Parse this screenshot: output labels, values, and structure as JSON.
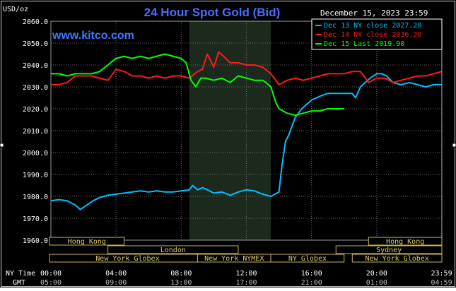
{
  "chart_data": {
    "type": "line",
    "title": "24 Hour Spot Gold (Bid)",
    "brand": "www.kitco.com",
    "timestamp": "December 15, 2023 23:59",
    "ylabel": "USD/oz",
    "ylim": [
      1960,
      2060
    ],
    "xlim": [
      0,
      24
    ],
    "yticks": [
      "1960.0",
      "1970.0",
      "1980.0",
      "1990.0",
      "2000.0",
      "2010.0",
      "2020.0",
      "2030.0",
      "2040.0",
      "2050.0",
      "2060.0"
    ],
    "ytick_values": [
      1960,
      1970,
      1980,
      1990,
      2000,
      2010,
      2020,
      2030,
      2040,
      2050,
      2060
    ],
    "time_rows": [
      {
        "label": "NY Time",
        "ticks": [
          "00:00",
          "04:00",
          "08:00",
          "12:00",
          "16:00",
          "20:00",
          "23:59"
        ]
      },
      {
        "label": "GMT",
        "ticks": [
          "05:00",
          "09:00",
          "13:00",
          "17:00",
          "21:00",
          "01:00",
          "04:59"
        ]
      }
    ],
    "xtick_hours": [
      0,
      4,
      8,
      12,
      16,
      20,
      23.98
    ],
    "shaded_hours": [
      8.5,
      13.5
    ],
    "sessions": [
      {
        "name": "Hong Kong",
        "start": -1,
        "end": 4.5,
        "row": 0
      },
      {
        "name": "Hong Kong",
        "start": 19.5,
        "end": 25,
        "row": 0
      },
      {
        "name": "London",
        "start": 3.5,
        "end": 11.5,
        "row": 1
      },
      {
        "name": "Sydney",
        "start": 17.5,
        "end": 25,
        "row": 1
      },
      {
        "name": "New York Globex",
        "start": -1,
        "end": 9.5,
        "row": 2
      },
      {
        "name": "New York NYMEX",
        "start": 9,
        "end": 13.5,
        "row": 2
      },
      {
        "name": "NY Globex",
        "start": 13.5,
        "end": 18,
        "row": 2
      },
      {
        "name": "New York Globex",
        "start": 18.5,
        "end": 25,
        "row": 2
      }
    ],
    "series": [
      {
        "name": "Dec 13 NY close 2027.20",
        "color": "#00bfff",
        "x": [
          0,
          0.5,
          1,
          1.5,
          1.8,
          2.2,
          2.6,
          3,
          3.5,
          4,
          4.5,
          5,
          5.5,
          6,
          6.5,
          7,
          7.5,
          8,
          8.5,
          8.7,
          9,
          9.3,
          9.6,
          10,
          10.5,
          11,
          11.5,
          12,
          12.5,
          13,
          13.5,
          14,
          14.2,
          14.4,
          14.6,
          14.8,
          15,
          15.2,
          15.4,
          15.7,
          16,
          16.3,
          16.6,
          17,
          17.5,
          18,
          18.5,
          18.7,
          19,
          19.3,
          19.6,
          20,
          20.3,
          20.6,
          21,
          21.5,
          22,
          22.5,
          23,
          23.5,
          23.98
        ],
        "values": [
          1978,
          1978.5,
          1978,
          1976,
          1974,
          1976,
          1978,
          1979.5,
          1980.5,
          1981,
          1981.5,
          1982,
          1982.5,
          1982,
          1982.5,
          1982,
          1982,
          1982.5,
          1983,
          1985,
          1983,
          1984,
          1983,
          1981.5,
          1982,
          1980.5,
          1982,
          1983,
          1982.5,
          1981,
          1980,
          1982,
          1995,
          2005,
          2008,
          2012,
          2016,
          2018,
          2020,
          2022,
          2024,
          2025,
          2026,
          2027,
          2027,
          2027,
          2027,
          2025,
          2030,
          2032,
          2034,
          2036,
          2036,
          2035,
          2032,
          2031,
          2032,
          2031,
          2030,
          2031,
          2031
        ]
      },
      {
        "name": "Dec 14 NY close 2036.20",
        "color": "#ff1a1a",
        "x": [
          0,
          0.5,
          1,
          1.5,
          2,
          2.5,
          3,
          3.5,
          4,
          4.5,
          5,
          5.5,
          6,
          6.5,
          7,
          7.5,
          8,
          8.5,
          9,
          9.3,
          9.6,
          10,
          10.3,
          10.6,
          11,
          11.5,
          12,
          12.5,
          13,
          13.5,
          14,
          14.5,
          15,
          15.5,
          16,
          16.5,
          17,
          17.5,
          18,
          18.5,
          19,
          19.5,
          20,
          20.5,
          21,
          21.5,
          22,
          22.5,
          23,
          23.5,
          23.98
        ],
        "values": [
          2031,
          2031,
          2032,
          2035,
          2035,
          2035,
          2034,
          2033,
          2038,
          2037,
          2035,
          2035,
          2034,
          2035,
          2034,
          2035,
          2035,
          2034,
          2037,
          2038,
          2045,
          2039,
          2046,
          2044,
          2041,
          2041,
          2040,
          2040,
          2039,
          2036,
          2031,
          2033,
          2034,
          2033,
          2034,
          2035,
          2036,
          2036,
          2036,
          2037,
          2037,
          2032,
          2034,
          2034,
          2032,
          2033,
          2034,
          2035,
          2035,
          2036,
          2037
        ]
      },
      {
        "name": "Dec 15 Last 2019.90",
        "color": "#00ff00",
        "x": [
          0,
          0.5,
          1,
          1.5,
          2,
          2.5,
          3,
          3.5,
          4,
          4.5,
          5,
          5.5,
          6,
          6.5,
          7,
          7.5,
          8,
          8.3,
          8.6,
          8.9,
          9.2,
          9.5,
          10,
          10.5,
          11,
          11.5,
          12,
          12.5,
          13,
          13.2,
          13.5,
          13.8,
          14,
          14.5,
          15,
          15.5,
          16,
          16.5,
          17,
          17.5,
          18
        ],
        "values": [
          2036,
          2036,
          2035,
          2036,
          2036,
          2036,
          2037,
          2040,
          2043,
          2044,
          2043,
          2044,
          2043,
          2044,
          2045,
          2044,
          2043,
          2041,
          2033,
          2030,
          2034,
          2034,
          2033,
          2034,
          2032,
          2035,
          2034,
          2033,
          2033,
          2032,
          2030,
          2023,
          2020,
          2018,
          2017,
          2018,
          2019,
          2019,
          2020,
          2020,
          2020
        ]
      }
    ]
  }
}
